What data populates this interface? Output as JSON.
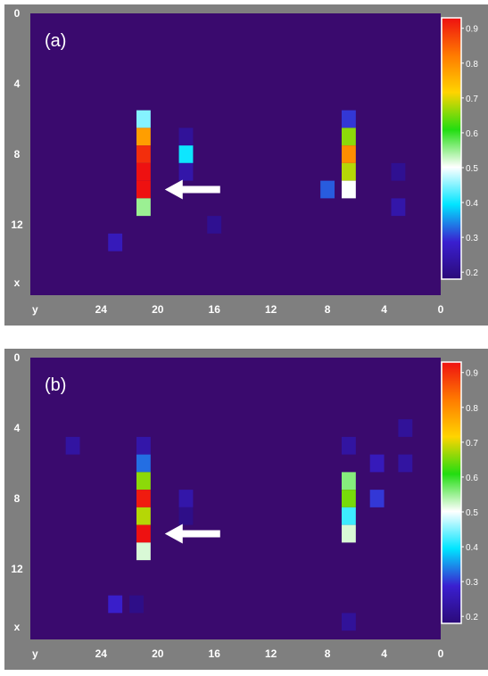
{
  "colors": {
    "panel_background": "#7f7f7f",
    "map_background": "#3a0a6e",
    "arrow": "#ffffff"
  },
  "colorbar": {
    "ticks": [
      "0.9",
      "0.8",
      "0.7",
      "0.6",
      "0.5",
      "0.4",
      "0.3",
      "0.2"
    ],
    "tick_values": [
      0.9,
      0.8,
      0.7,
      0.6,
      0.5,
      0.4,
      0.3,
      0.2
    ],
    "range": [
      0.18,
      0.93
    ],
    "stops": [
      "#2b0a78",
      "#3a1fd0",
      "#00e5ff",
      "#ffffff",
      "#22dd11",
      "#ffd400",
      "#ff7a00",
      "#ee1111"
    ]
  },
  "chart_data": [
    {
      "type": "heatmap",
      "panel_label": "(a)",
      "x_axis_label": "x",
      "y_axis_label": "y",
      "x_ticks": [
        "0",
        "4",
        "8",
        "12"
      ],
      "x_tick_values": [
        0,
        4,
        8,
        12
      ],
      "y_ticks": [
        "24",
        "20",
        "16",
        "12",
        "8",
        "4",
        "0"
      ],
      "y_tick_values": [
        24,
        20,
        16,
        12,
        8,
        4,
        0
      ],
      "x_range": [
        0,
        16
      ],
      "y_range": [
        29,
        0
      ],
      "arrow": {
        "x": 10,
        "y": 20
      },
      "cells": [
        {
          "x": 6,
          "y": 21,
          "v": 0.45
        },
        {
          "x": 7,
          "y": 21,
          "v": 0.78
        },
        {
          "x": 8,
          "y": 21,
          "v": 0.9
        },
        {
          "x": 9,
          "y": 21,
          "v": 0.93
        },
        {
          "x": 10,
          "y": 21,
          "v": 0.93
        },
        {
          "x": 11,
          "y": 21,
          "v": 0.55
        },
        {
          "x": 13,
          "y": 23,
          "v": 0.26
        },
        {
          "x": 7,
          "y": 18,
          "v": 0.22
        },
        {
          "x": 8,
          "y": 18,
          "v": 0.4
        },
        {
          "x": 9,
          "y": 18,
          "v": 0.24
        },
        {
          "x": 12,
          "y": 16,
          "v": 0.21
        },
        {
          "x": 6,
          "y": 6.5,
          "v": 0.3
        },
        {
          "x": 7,
          "y": 6.5,
          "v": 0.66
        },
        {
          "x": 8,
          "y": 6.5,
          "v": 0.8
        },
        {
          "x": 9,
          "y": 6.5,
          "v": 0.68
        },
        {
          "x": 10,
          "y": 6.5,
          "v": 0.5
        },
        {
          "x": 10,
          "y": 8,
          "v": 0.32
        },
        {
          "x": 9,
          "y": 3,
          "v": 0.21
        },
        {
          "x": 11,
          "y": 3,
          "v": 0.24
        }
      ]
    },
    {
      "type": "heatmap",
      "panel_label": "(b)",
      "x_axis_label": "x",
      "y_axis_label": "y",
      "x_ticks": [
        "0",
        "4",
        "8",
        "12"
      ],
      "x_tick_values": [
        0,
        4,
        8,
        12
      ],
      "y_ticks": [
        "24",
        "20",
        "16",
        "12",
        "8",
        "4",
        "0"
      ],
      "y_tick_values": [
        24,
        20,
        16,
        12,
        8,
        4,
        0
      ],
      "x_range": [
        0,
        16
      ],
      "y_range": [
        29,
        0
      ],
      "arrow": {
        "x": 10,
        "y": 20
      },
      "cells": [
        {
          "x": 5,
          "y": 26,
          "v": 0.23
        },
        {
          "x": 5,
          "y": 21,
          "v": 0.24
        },
        {
          "x": 6,
          "y": 21,
          "v": 0.33
        },
        {
          "x": 7,
          "y": 21,
          "v": 0.66
        },
        {
          "x": 8,
          "y": 21,
          "v": 0.92
        },
        {
          "x": 9,
          "y": 21,
          "v": 0.68
        },
        {
          "x": 10,
          "y": 21,
          "v": 0.93
        },
        {
          "x": 11,
          "y": 21,
          "v": 0.52
        },
        {
          "x": 14,
          "y": 23,
          "v": 0.28
        },
        {
          "x": 14,
          "y": 21.5,
          "v": 0.2
        },
        {
          "x": 8,
          "y": 18,
          "v": 0.24
        },
        {
          "x": 9,
          "y": 18,
          "v": 0.2
        },
        {
          "x": 5,
          "y": 6.5,
          "v": 0.23
        },
        {
          "x": 7,
          "y": 6.5,
          "v": 0.56
        },
        {
          "x": 8,
          "y": 6.5,
          "v": 0.65
        },
        {
          "x": 9,
          "y": 6.5,
          "v": 0.42
        },
        {
          "x": 10,
          "y": 6.5,
          "v": 0.52
        },
        {
          "x": 15,
          "y": 6.5,
          "v": 0.22
        },
        {
          "x": 6,
          "y": 4.5,
          "v": 0.26
        },
        {
          "x": 8,
          "y": 4.5,
          "v": 0.3
        },
        {
          "x": 4,
          "y": 2.5,
          "v": 0.22
        },
        {
          "x": 6,
          "y": 2.5,
          "v": 0.23
        }
      ]
    }
  ]
}
